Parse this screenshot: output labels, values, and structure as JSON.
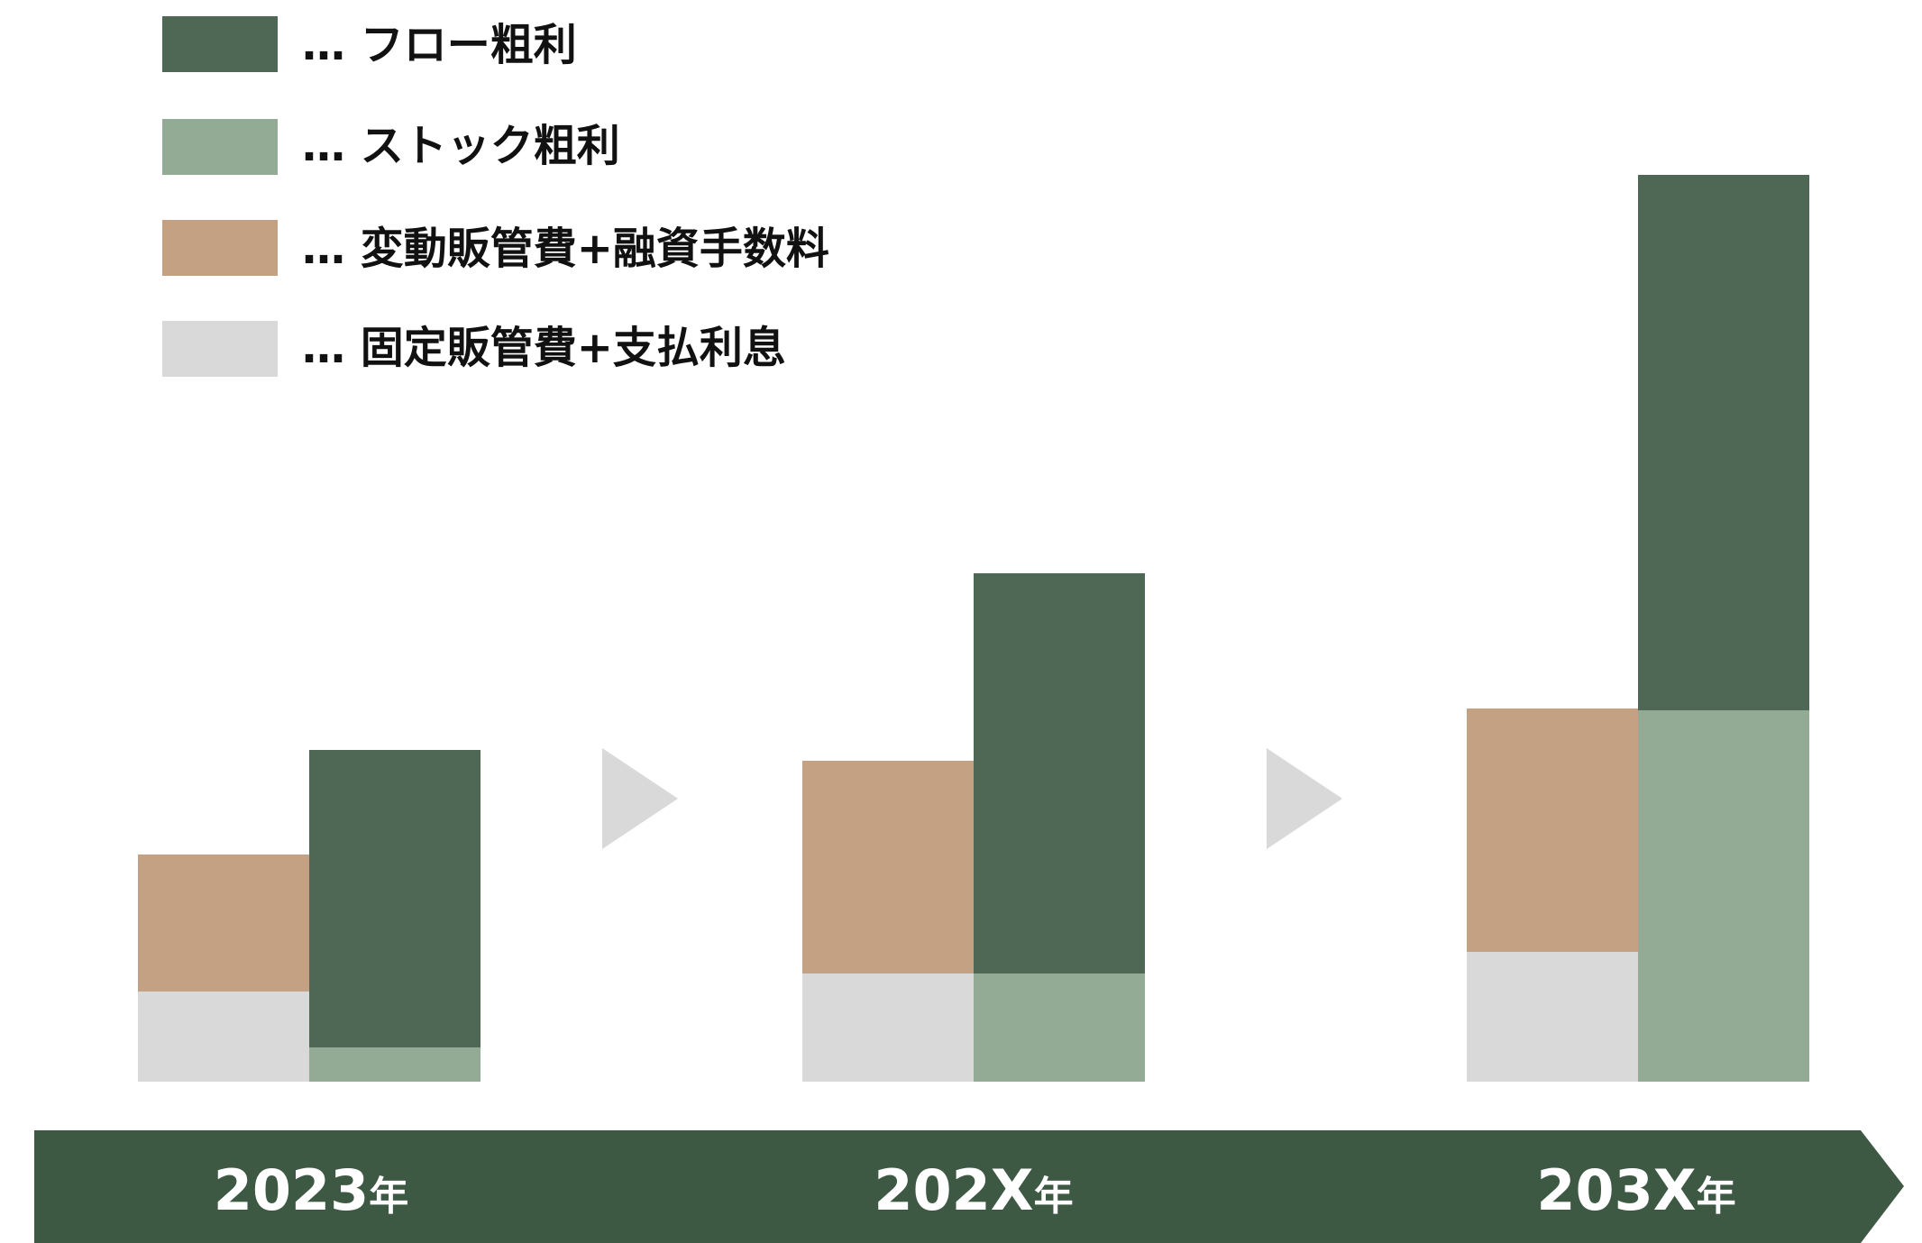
{
  "colors": {
    "flow_gross_profit": "#4f6755",
    "stock_gross_profit": "#93ab94",
    "variable_costs": "#c4a183",
    "fixed_costs": "#d9d9d9",
    "timeline": "#3d5843",
    "arrow": "#d9d9d9",
    "label_text": "#ffffff"
  },
  "legend": [
    {
      "key": "flow_gross_profit",
      "label": "… フロー粗利"
    },
    {
      "key": "stock_gross_profit",
      "label": "… ストック粗利"
    },
    {
      "key": "variable_costs",
      "label": "… 変動販管費+融資手数料"
    },
    {
      "key": "fixed_costs",
      "label": "… 固定販管費+支払利息"
    }
  ],
  "periods": [
    {
      "year": "2023",
      "suffix": "年"
    },
    {
      "year": "202X",
      "suffix": "年"
    },
    {
      "year": "203X",
      "suffix": "年"
    }
  ],
  "chart_data": {
    "type": "bar",
    "stacked": true,
    "grid": false,
    "legend_position": "top-left",
    "categories": [
      "2023年",
      "202X年",
      "203X年"
    ],
    "ylim": [
      0,
      1
    ],
    "stacks": [
      {
        "stack": "costs",
        "series": [
          {
            "name": "固定販管費+支払利息",
            "key": "fixed_costs",
            "values": [
              0.1,
              0.12,
              0.144
            ]
          },
          {
            "name": "変動販管費+融資手数料",
            "key": "variable_costs",
            "values": [
              0.152,
              0.236,
              0.27
            ]
          }
        ]
      },
      {
        "stack": "gross_profit",
        "series": [
          {
            "name": "ストック粗利",
            "key": "stock_gross_profit",
            "values": [
              0.038,
              0.12,
              0.412
            ]
          },
          {
            "name": "フロー粗利",
            "key": "flow_gross_profit",
            "values": [
              0.33,
              0.444,
              0.594
            ]
          }
        ]
      }
    ]
  }
}
